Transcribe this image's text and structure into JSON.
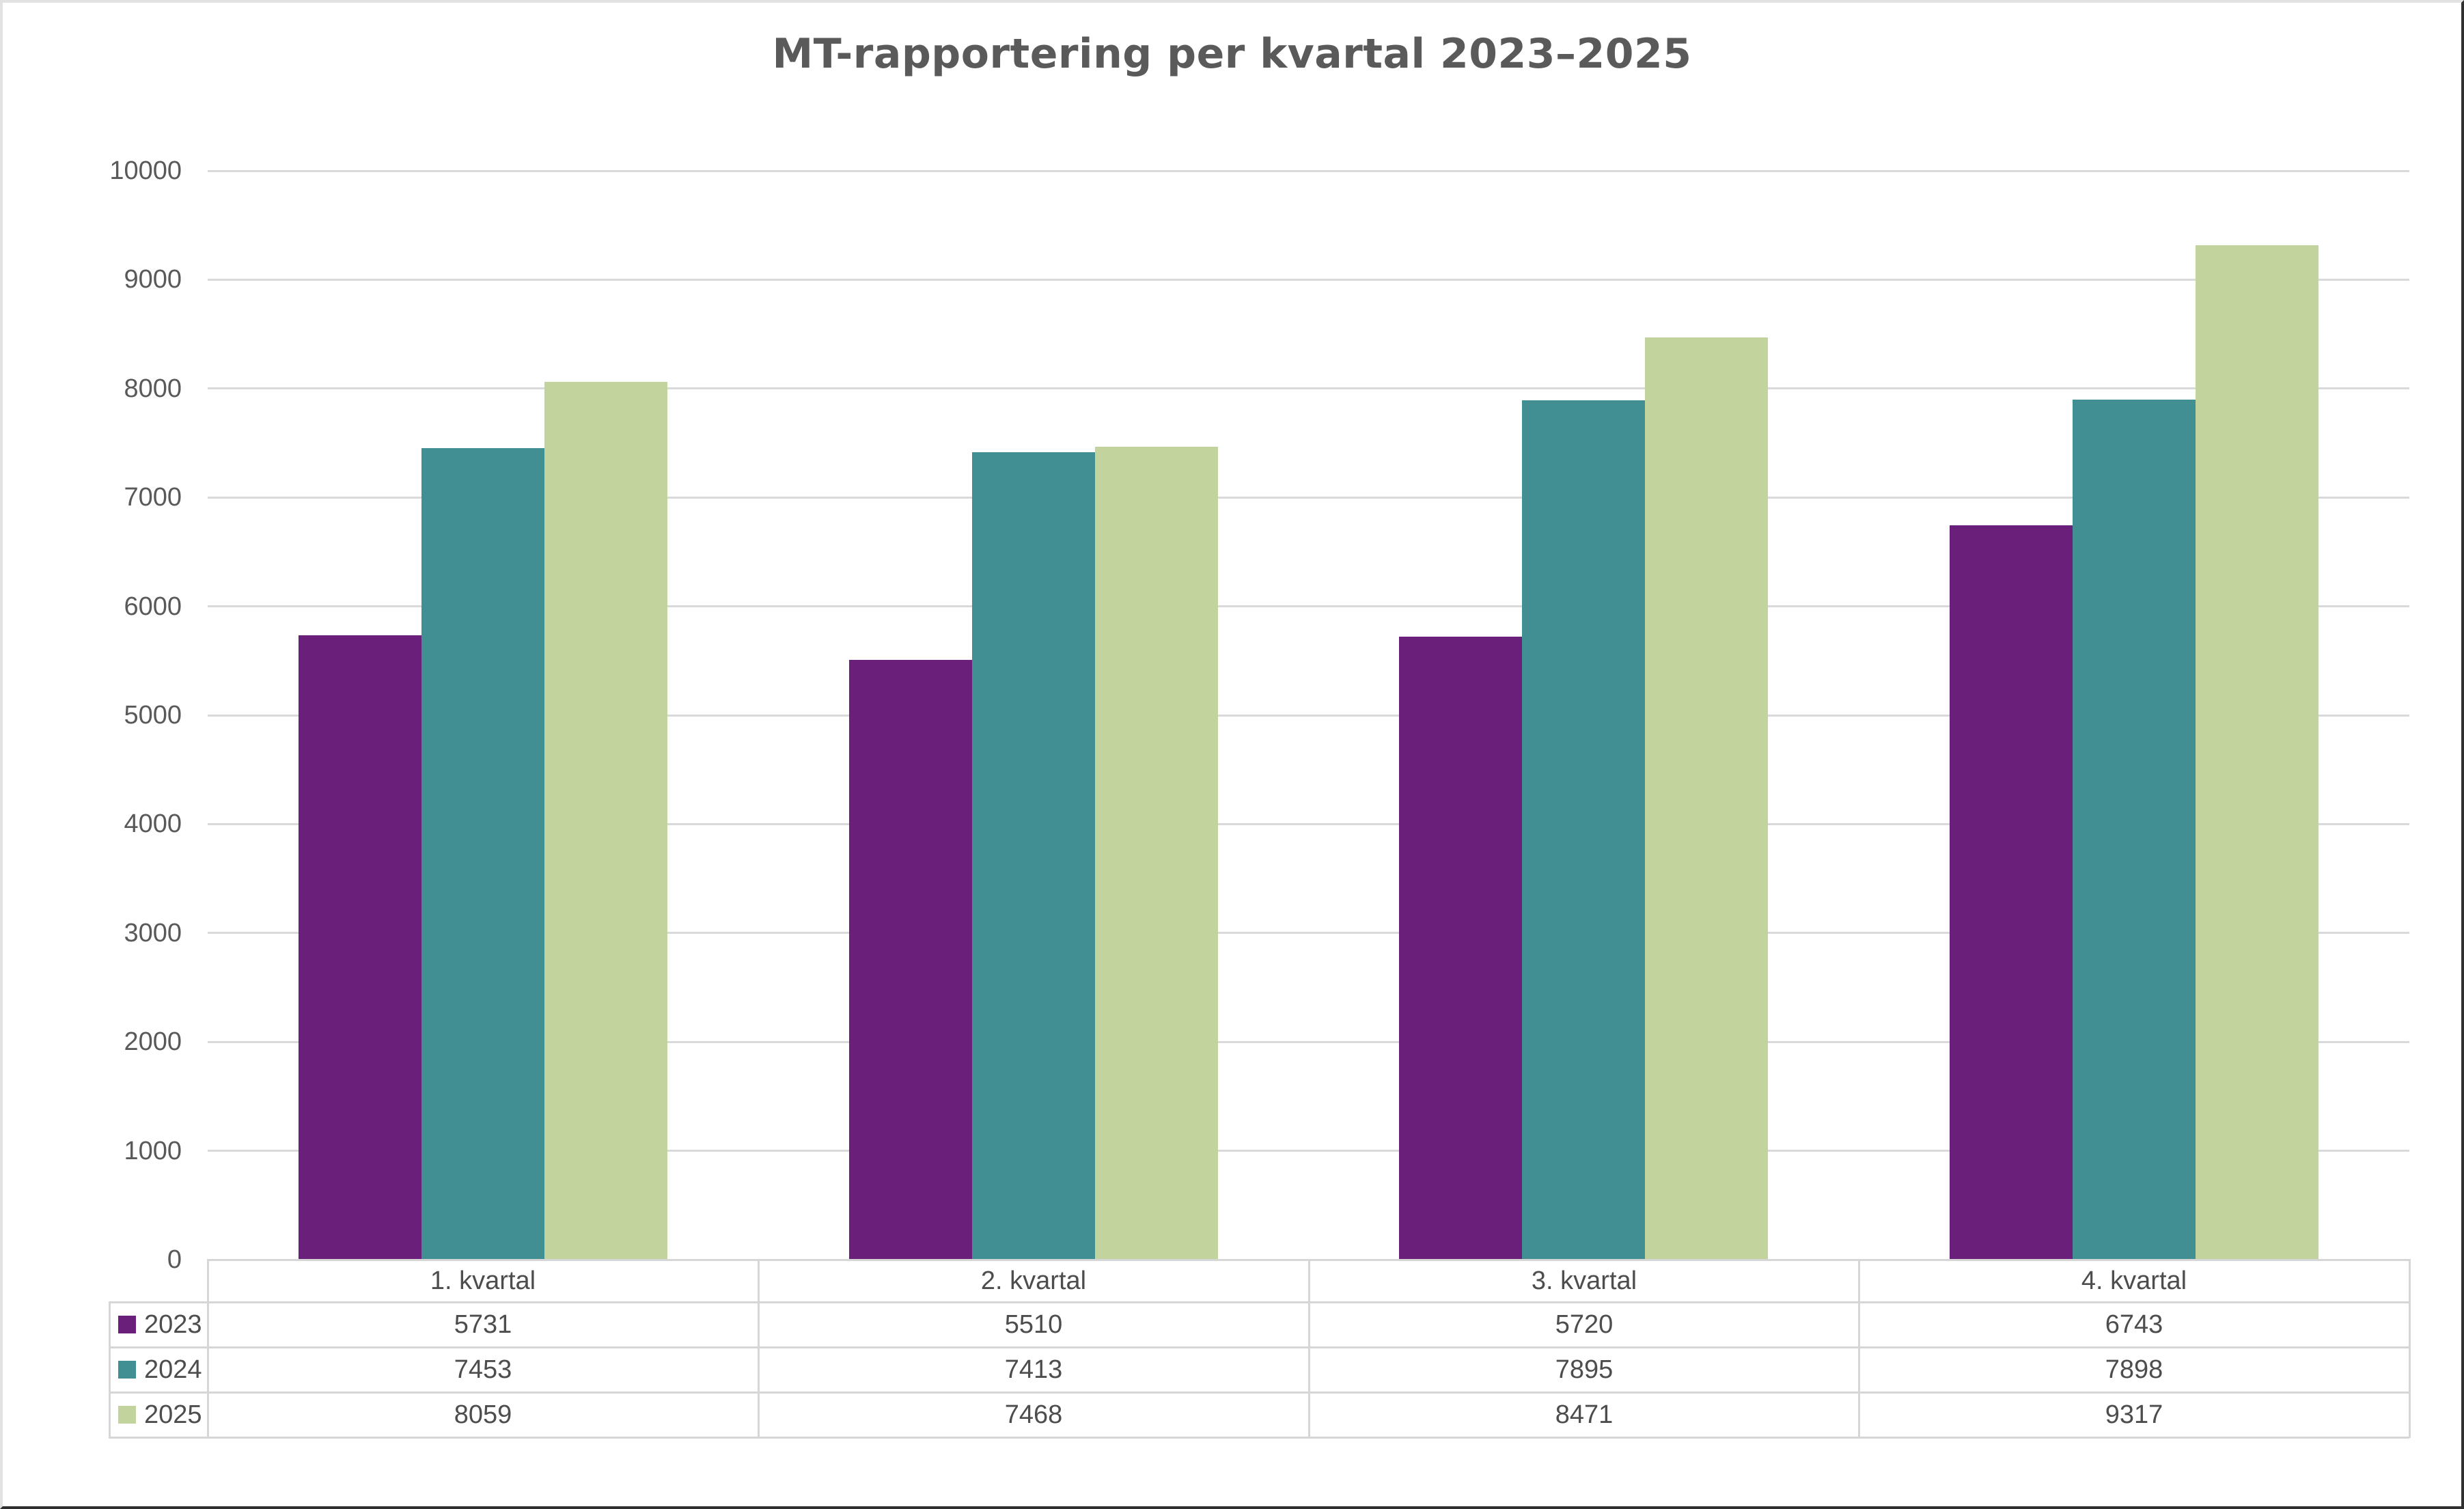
{
  "title": "MT-rapportering per kvartal 2023–2025",
  "chart_data": {
    "type": "bar",
    "title": "MT-rapportering per kvartal 2023–2025",
    "categories": [
      "1. kvartal",
      "2. kvartal",
      "3. kvartal",
      "4. kvartal"
    ],
    "series": [
      {
        "name": "2023",
        "color": "#6A1F7B",
        "values": [
          5731,
          5510,
          5720,
          6743
        ]
      },
      {
        "name": "2024",
        "color": "#418E93",
        "values": [
          7453,
          7413,
          7895,
          7898
        ]
      },
      {
        "name": "2025",
        "color": "#C3D39E",
        "values": [
          8059,
          7468,
          8471,
          9317
        ]
      }
    ],
    "ylim": [
      0,
      10000
    ],
    "yticks": [
      0,
      1000,
      2000,
      3000,
      4000,
      5000,
      6000,
      7000,
      8000,
      9000,
      10000
    ],
    "grid": true,
    "legend_position": "left-of-data-table",
    "data_table_shown": true,
    "xlabel": "",
    "ylabel": ""
  },
  "colors": {
    "background": "#FFFFFF",
    "grid": "#D9D9D9",
    "table_border": "#D6D6D6",
    "axis_text": "#595959",
    "table_text": "#4D4D4D",
    "title_text": "#5A5A5A",
    "series_2023": "#6A1F7B",
    "series_2024": "#418E93",
    "series_2025": "#C3D39E"
  }
}
